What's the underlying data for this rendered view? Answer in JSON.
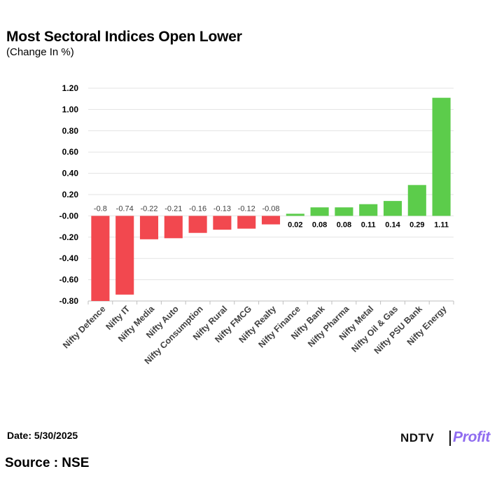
{
  "header": {
    "title": "Most Sectoral Indices Open Lower",
    "subtitle": "(Change In %)"
  },
  "footer": {
    "date": "Date: 5/30/2025",
    "source": "Source : NSE",
    "logo_primary": "NDTV",
    "logo_secondary": "Profit"
  },
  "colors": {
    "negative": "#f2484f",
    "positive": "#5ccc4b",
    "grid": "#e3e3e3",
    "axis": "#bfbfbf"
  },
  "chart_data": {
    "type": "bar",
    "title": "Most Sectoral Indices Open Lower",
    "subtitle": "(Change In %)",
    "xlabel": "",
    "ylabel": "",
    "ylim": [
      -0.8,
      1.2
    ],
    "yticks": [
      1.2,
      1.0,
      0.8,
      0.6,
      0.4,
      0.2,
      -0.0,
      -0.2,
      -0.4,
      -0.6,
      -0.8
    ],
    "ytick_labels": [
      "1.20",
      "1.00",
      "0.80",
      "0.60",
      "0.40",
      "0.20",
      "-0.00",
      "-0.20",
      "-0.40",
      "-0.60",
      "-0.80"
    ],
    "grid": true,
    "categories": [
      "Nifty Defence",
      "Nifty IT",
      "Nifty Media",
      "Nifty Auto",
      "Nifty Consumption",
      "Nifty Rural",
      "Nifty FMCG",
      "Nifty Realty",
      "Nifty Finance",
      "Nifty Bank",
      "Nifty Pharma",
      "Nifty Metal",
      "Nifty Oil & Gas",
      "Nifty PSU Bank",
      "Nifty Energy"
    ],
    "values": [
      -0.8,
      -0.74,
      -0.22,
      -0.21,
      -0.16,
      -0.13,
      -0.12,
      -0.08,
      0.02,
      0.08,
      0.08,
      0.11,
      0.14,
      0.29,
      1.11
    ],
    "data_labels": [
      "-0.8",
      "-0.74",
      "-0.22",
      "-0.21",
      "-0.16",
      "-0.13",
      "-0.12",
      "-0.08",
      "0.02",
      "0.08",
      "0.08",
      "0.11",
      "0.14",
      "0.29",
      "1.11"
    ]
  }
}
